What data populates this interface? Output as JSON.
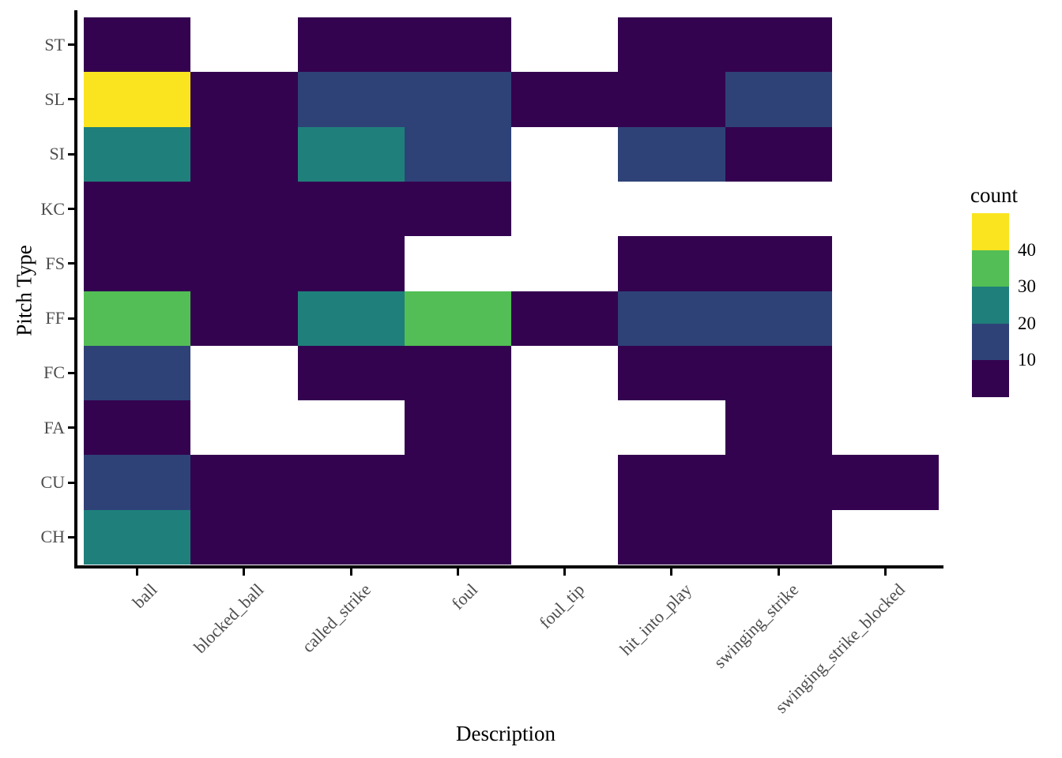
{
  "axes": {
    "x_title": "Description",
    "y_title": "Pitch Type"
  },
  "legend": {
    "title": "count",
    "labels": [
      "40",
      "30",
      "20",
      "10"
    ]
  },
  "chart_data": {
    "type": "heatmap",
    "title": "",
    "xlabel": "Description",
    "ylabel": "Pitch Type",
    "x_categories": [
      "ball",
      "blocked_ball",
      "called_strike",
      "foul",
      "foul_tip",
      "hit_into_play",
      "swinging_strike",
      "swinging_strike_blocked"
    ],
    "y_categories": [
      "ST",
      "SL",
      "SI",
      "KC",
      "FS",
      "FF",
      "FC",
      "FA",
      "CU",
      "CH"
    ],
    "legend_title": "count",
    "legend_breaks": [
      40,
      30,
      20,
      10
    ],
    "color_scale": [
      {
        "upper": 10,
        "color": "#340350",
        "bin": "0-10"
      },
      {
        "upper": 20,
        "color": "#2E4277",
        "bin": "10-20"
      },
      {
        "upper": 30,
        "color": "#1F807B",
        "bin": "20-30"
      },
      {
        "upper": 40,
        "color": "#52BE55",
        "bin": "30-40"
      },
      {
        "upper": 50,
        "color": "#F9E41F",
        "bin": "40-50"
      }
    ],
    "missing_value_color": "#ffffff",
    "values_note": "estimated count per cell from binned color scale; null = no tile drawn",
    "values": [
      [
        5,
        null,
        5,
        5,
        null,
        5,
        5,
        null
      ],
      [
        45,
        5,
        15,
        15,
        5,
        5,
        15,
        null
      ],
      [
        25,
        5,
        25,
        15,
        null,
        15,
        5,
        null
      ],
      [
        5,
        5,
        5,
        5,
        null,
        null,
        null,
        null
      ],
      [
        5,
        5,
        5,
        null,
        null,
        5,
        5,
        null
      ],
      [
        35,
        5,
        25,
        35,
        5,
        15,
        15,
        null
      ],
      [
        15,
        null,
        5,
        5,
        null,
        5,
        5,
        null
      ],
      [
        5,
        null,
        null,
        5,
        null,
        null,
        5,
        null
      ],
      [
        15,
        5,
        5,
        5,
        null,
        5,
        5,
        5
      ],
      [
        25,
        5,
        5,
        5,
        null,
        5,
        5,
        null
      ]
    ],
    "legend_position": "right",
    "grid": false
  }
}
